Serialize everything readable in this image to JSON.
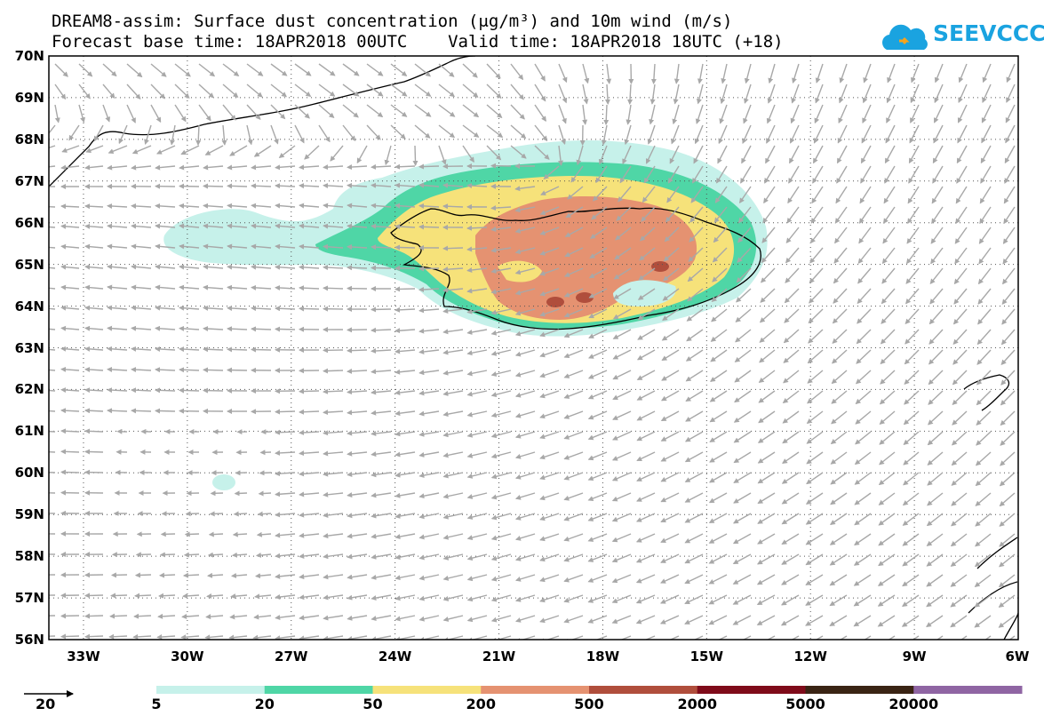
{
  "title": {
    "line1": "DREAM8-assim: Surface dust concentration (μg/m³) and 10m wind (m/s)",
    "line2": "Forecast base time: 18APR2018 00UTC    Valid time: 18APR2018 18UTC (+18)"
  },
  "logo": {
    "text": "SEEVCCC",
    "color": "#1aa3e0",
    "icon": "cloud-icon"
  },
  "map": {
    "lon_range": [
      -34,
      -6
    ],
    "lat_range": [
      56,
      70
    ],
    "lat_labels": [
      "70N",
      "69N",
      "68N",
      "67N",
      "66N",
      "65N",
      "64N",
      "63N",
      "62N",
      "61N",
      "60N",
      "59N",
      "58N",
      "57N",
      "56N"
    ],
    "lon_labels": [
      "33W",
      "30W",
      "27W",
      "24W",
      "21W",
      "18W",
      "15W",
      "12W",
      "9W",
      "6W"
    ],
    "gridlines": "dotted",
    "wind_arrow_color": "#a8a8a8",
    "reference_vector": {
      "value": "20"
    }
  },
  "colorbar": {
    "labels": [
      "5",
      "20",
      "50",
      "200",
      "500",
      "2000",
      "5000",
      "20000"
    ],
    "colors": [
      "#c6f1ea",
      "#4fd6a6",
      "#f6e27a",
      "#e59271",
      "#b04e3c",
      "#7f0b1a",
      "#3a2414",
      "#8f65a3"
    ]
  }
}
